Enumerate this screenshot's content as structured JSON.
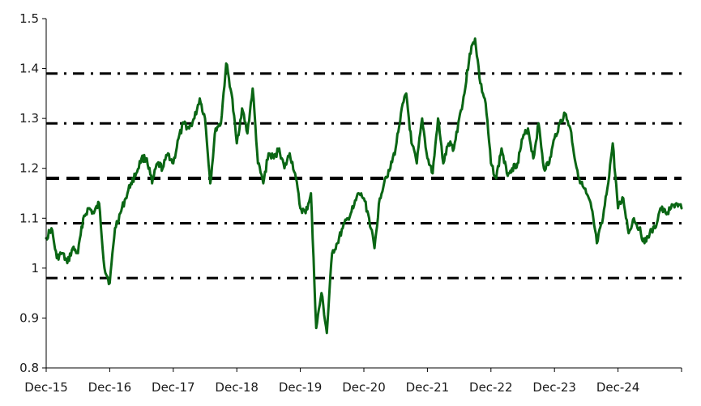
{
  "chart_data": {
    "type": "line",
    "title": "",
    "xlabel": "",
    "ylabel": "",
    "ylim": [
      0.8,
      1.5
    ],
    "yticks": [
      "0.8",
      "0.9",
      "1",
      "1.1",
      "1.2",
      "1.3",
      "1.4",
      "1.5"
    ],
    "xtick_labels": [
      "Dec-15",
      "Dec-16",
      "Dec-17",
      "Dec-18",
      "Dec-19",
      "Dec-20",
      "Dec-21",
      "Dec-22",
      "Dec-23",
      "Dec-24"
    ],
    "xlim": [
      "2015-12",
      "2025-12"
    ],
    "grid": false,
    "legend": "none",
    "colors": {
      "series": "#0a6614",
      "reference_lines": "#000000",
      "axis": "#000000"
    },
    "reference_lines": [
      {
        "value": 1.39,
        "style": "dash-dot"
      },
      {
        "value": 1.29,
        "style": "dash-dot"
      },
      {
        "value": 1.18,
        "style": "dashed"
      },
      {
        "value": 1.09,
        "style": "dash-dot"
      },
      {
        "value": 0.98,
        "style": "dash-dot"
      }
    ],
    "series": [
      {
        "x": [
          "2015-12",
          "2016-01",
          "2016-02",
          "2016-03",
          "2016-04",
          "2016-05",
          "2016-06",
          "2016-07",
          "2016-08",
          "2016-09",
          "2016-10",
          "2016-11",
          "2016-12",
          "2017-01",
          "2017-02",
          "2017-03",
          "2017-04",
          "2017-05",
          "2017-06",
          "2017-07",
          "2017-08",
          "2017-09",
          "2017-10",
          "2017-11",
          "2017-12",
          "2018-01",
          "2018-02",
          "2018-03",
          "2018-04",
          "2018-05",
          "2018-06",
          "2018-07",
          "2018-08",
          "2018-09",
          "2018-10",
          "2018-11",
          "2018-12",
          "2019-01",
          "2019-02",
          "2019-03",
          "2019-04",
          "2019-05",
          "2019-06",
          "2019-07",
          "2019-08",
          "2019-09",
          "2019-10",
          "2019-11",
          "2019-12",
          "2020-01",
          "2020-02",
          "2020-03",
          "2020-04",
          "2020-05",
          "2020-06",
          "2020-07",
          "2020-08",
          "2020-09",
          "2020-10",
          "2020-11",
          "2020-12",
          "2021-01",
          "2021-02",
          "2021-03",
          "2021-04",
          "2021-05",
          "2021-06",
          "2021-07",
          "2021-08",
          "2021-09",
          "2021-10",
          "2021-11",
          "2021-12",
          "2022-01",
          "2022-02",
          "2022-03",
          "2022-04",
          "2022-05",
          "2022-06",
          "2022-07",
          "2022-08",
          "2022-09",
          "2022-10",
          "2022-11",
          "2022-12",
          "2023-01",
          "2023-02",
          "2023-03",
          "2023-04",
          "2023-05",
          "2023-06",
          "2023-07",
          "2023-08",
          "2023-09",
          "2023-10",
          "2023-11",
          "2023-12",
          "2024-01",
          "2024-02",
          "2024-03",
          "2024-04",
          "2024-05",
          "2024-06",
          "2024-07",
          "2024-08",
          "2024-09",
          "2024-10",
          "2024-11",
          "2024-12",
          "2025-01",
          "2025-02",
          "2025-03",
          "2025-04",
          "2025-05",
          "2025-06",
          "2025-07",
          "2025-08",
          "2025-09",
          "2025-10",
          "2025-11",
          "2025-12"
        ],
        "values": [
          1.06,
          1.08,
          1.02,
          1.03,
          1.01,
          1.04,
          1.03,
          1.1,
          1.12,
          1.11,
          1.13,
          1.0,
          0.97,
          1.08,
          1.11,
          1.14,
          1.17,
          1.19,
          1.22,
          1.22,
          1.17,
          1.21,
          1.2,
          1.23,
          1.21,
          1.26,
          1.29,
          1.28,
          1.3,
          1.34,
          1.3,
          1.17,
          1.28,
          1.29,
          1.41,
          1.35,
          1.25,
          1.32,
          1.27,
          1.36,
          1.21,
          1.17,
          1.23,
          1.22,
          1.24,
          1.2,
          1.23,
          1.19,
          1.12,
          1.11,
          1.15,
          0.88,
          0.95,
          0.87,
          1.03,
          1.05,
          1.08,
          1.1,
          1.12,
          1.15,
          1.14,
          1.1,
          1.04,
          1.14,
          1.18,
          1.2,
          1.24,
          1.31,
          1.35,
          1.25,
          1.21,
          1.3,
          1.22,
          1.19,
          1.3,
          1.21,
          1.25,
          1.24,
          1.3,
          1.35,
          1.43,
          1.46,
          1.37,
          1.33,
          1.21,
          1.18,
          1.24,
          1.19,
          1.2,
          1.21,
          1.26,
          1.28,
          1.22,
          1.29,
          1.2,
          1.21,
          1.26,
          1.29,
          1.31,
          1.28,
          1.21,
          1.17,
          1.15,
          1.12,
          1.05,
          1.09,
          1.16,
          1.25,
          1.12,
          1.14,
          1.07,
          1.1,
          1.08,
          1.05,
          1.07,
          1.08,
          1.12,
          1.11,
          1.12,
          1.13,
          1.12
        ]
      }
    ]
  }
}
